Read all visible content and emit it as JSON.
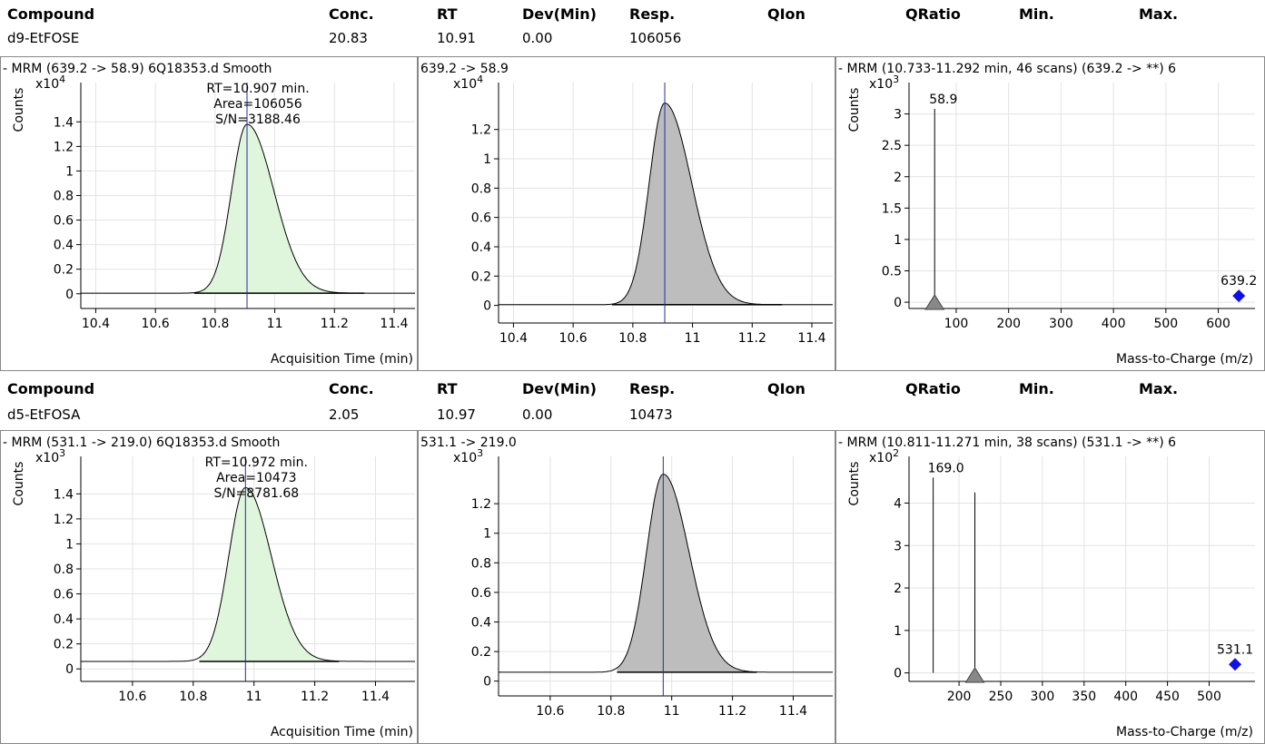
{
  "headers": [
    "Compound",
    "Conc.",
    "RT",
    "Dev(Min)",
    "Resp.",
    "QIon",
    "QRatio",
    "Min.",
    "Max."
  ],
  "compounds": [
    {
      "name": "d9-EtFOSE",
      "conc": "20.83",
      "rt": "10.91",
      "dev": "0.00",
      "resp": "106056",
      "quant": {
        "title": "- MRM (639.2 -> 58.9) 6Q18353.d  Smooth",
        "ylabel": "Counts",
        "exponent": "4",
        "xlabel": "Acquisition Time (min)",
        "xticks": [
          "10.4",
          "10.6",
          "10.8",
          "11",
          "11.2",
          "11.4"
        ],
        "yticks": [
          "0",
          "0.2",
          "0.4",
          "0.6",
          "0.8",
          "1",
          "1.2",
          "1.4"
        ],
        "xlim": [
          10.35,
          11.47
        ],
        "ylim": [
          -0.12,
          1.72
        ],
        "peak": {
          "rt": 10.907,
          "apex": 1.38,
          "sigma": 0.052,
          "tail": 0.09,
          "start": 10.73,
          "end": 11.3,
          "baseline": 0.005
        },
        "annotations": [
          "RT=10.907 min.",
          "Area=106056",
          "S/N=3188.46"
        ]
      },
      "qual": {
        "title": "639.2 -> 58.9",
        "exponent": "4",
        "xticks": [
          "10.4",
          "10.6",
          "10.8",
          "11",
          "11.2",
          "11.4"
        ],
        "yticks": [
          "0",
          "0.2",
          "0.4",
          "0.6",
          "0.8",
          "1",
          "1.2"
        ],
        "xlim": [
          10.35,
          11.47
        ],
        "ylim": [
          -0.12,
          1.52
        ],
        "peak": {
          "rt": 10.907,
          "apex": 1.38,
          "sigma": 0.052,
          "tail": 0.09,
          "start": 10.73,
          "end": 11.3,
          "baseline": 0.005
        }
      },
      "spectrum": {
        "title": "- MRM (10.733-11.292 min, 46 scans) (639.2 -> **) 6",
        "ylabel": "Counts",
        "exponent": "3",
        "xlabel": "Mass-to-Charge (m/z)",
        "xticks": [
          "100",
          "200",
          "300",
          "400",
          "500",
          "600"
        ],
        "yticks": [
          "0",
          "0.5",
          "1",
          "1.5",
          "2",
          "2.5",
          "3"
        ],
        "xlim": [
          10,
          670
        ],
        "ylim": [
          -0.1,
          3.5
        ],
        "peaks": [
          {
            "mz": 58.9,
            "intensity": 3.08,
            "label": "58.9"
          }
        ],
        "precursor": {
          "mz": 639.2,
          "intensity": 0.1,
          "label": "639.2"
        }
      }
    },
    {
      "name": "d5-EtFOSA",
      "conc": "2.05",
      "rt": "10.97",
      "dev": "0.00",
      "resp": "10473",
      "quant": {
        "title": "- MRM (531.1 -> 219.0) 6Q18353.d  Smooth",
        "ylabel": "Counts",
        "exponent": "3",
        "xlabel": "Acquisition Time (min)",
        "xticks": [
          "10.6",
          "10.8",
          "11",
          "11.2",
          "11.4"
        ],
        "yticks": [
          "0",
          "0.2",
          "0.4",
          "0.6",
          "0.8",
          "1",
          "1.2",
          "1.4"
        ],
        "xlim": [
          10.43,
          11.53
        ],
        "ylim": [
          -0.1,
          1.7
        ],
        "peak": {
          "rt": 10.972,
          "apex": 1.45,
          "sigma": 0.055,
          "tail": 0.085,
          "start": 10.82,
          "end": 11.28,
          "baseline": 0.06
        },
        "annotations": [
          "RT=10.972 min.",
          "Area=10473",
          "S/N=8781.68"
        ]
      },
      "qual": {
        "title": "531.1 -> 219.0",
        "exponent": "3",
        "xticks": [
          "10.6",
          "10.8",
          "11",
          "11.2",
          "11.4"
        ],
        "yticks": [
          "0",
          "0.2",
          "0.4",
          "0.6",
          "0.8",
          "1",
          "1.2"
        ],
        "xlim": [
          10.43,
          11.53
        ],
        "ylim": [
          -0.1,
          1.52
        ],
        "peak": {
          "rt": 10.972,
          "apex": 1.4,
          "sigma": 0.055,
          "tail": 0.085,
          "start": 10.82,
          "end": 11.28,
          "baseline": 0.06
        }
      },
      "spectrum": {
        "title": "- MRM (10.811-11.271 min, 38 scans) (531.1 -> **) 6",
        "ylabel": "Counts",
        "exponent": "2",
        "xlabel": "Mass-to-Charge (m/z)",
        "xticks": [
          "200",
          "250",
          "300",
          "350",
          "400",
          "450",
          "500"
        ],
        "yticks": [
          "0",
          "1",
          "2",
          "3",
          "4"
        ],
        "xlim": [
          140,
          555
        ],
        "ylim": [
          -0.2,
          5.1
        ],
        "peaks": [
          {
            "mz": 169.0,
            "intensity": 4.6,
            "label": "169.0"
          },
          {
            "mz": 219.0,
            "intensity": 4.25,
            "label": ""
          }
        ],
        "precursor": {
          "mz": 531.1,
          "intensity": 0.2,
          "label": "531.1"
        }
      }
    }
  ],
  "colors": {
    "fill_quant": "#dff5dc",
    "fill_qual": "#bdbdbd",
    "rt_line": "#2a2aa0",
    "precursor": "#1010e0",
    "grid": "#e3e3e3"
  }
}
